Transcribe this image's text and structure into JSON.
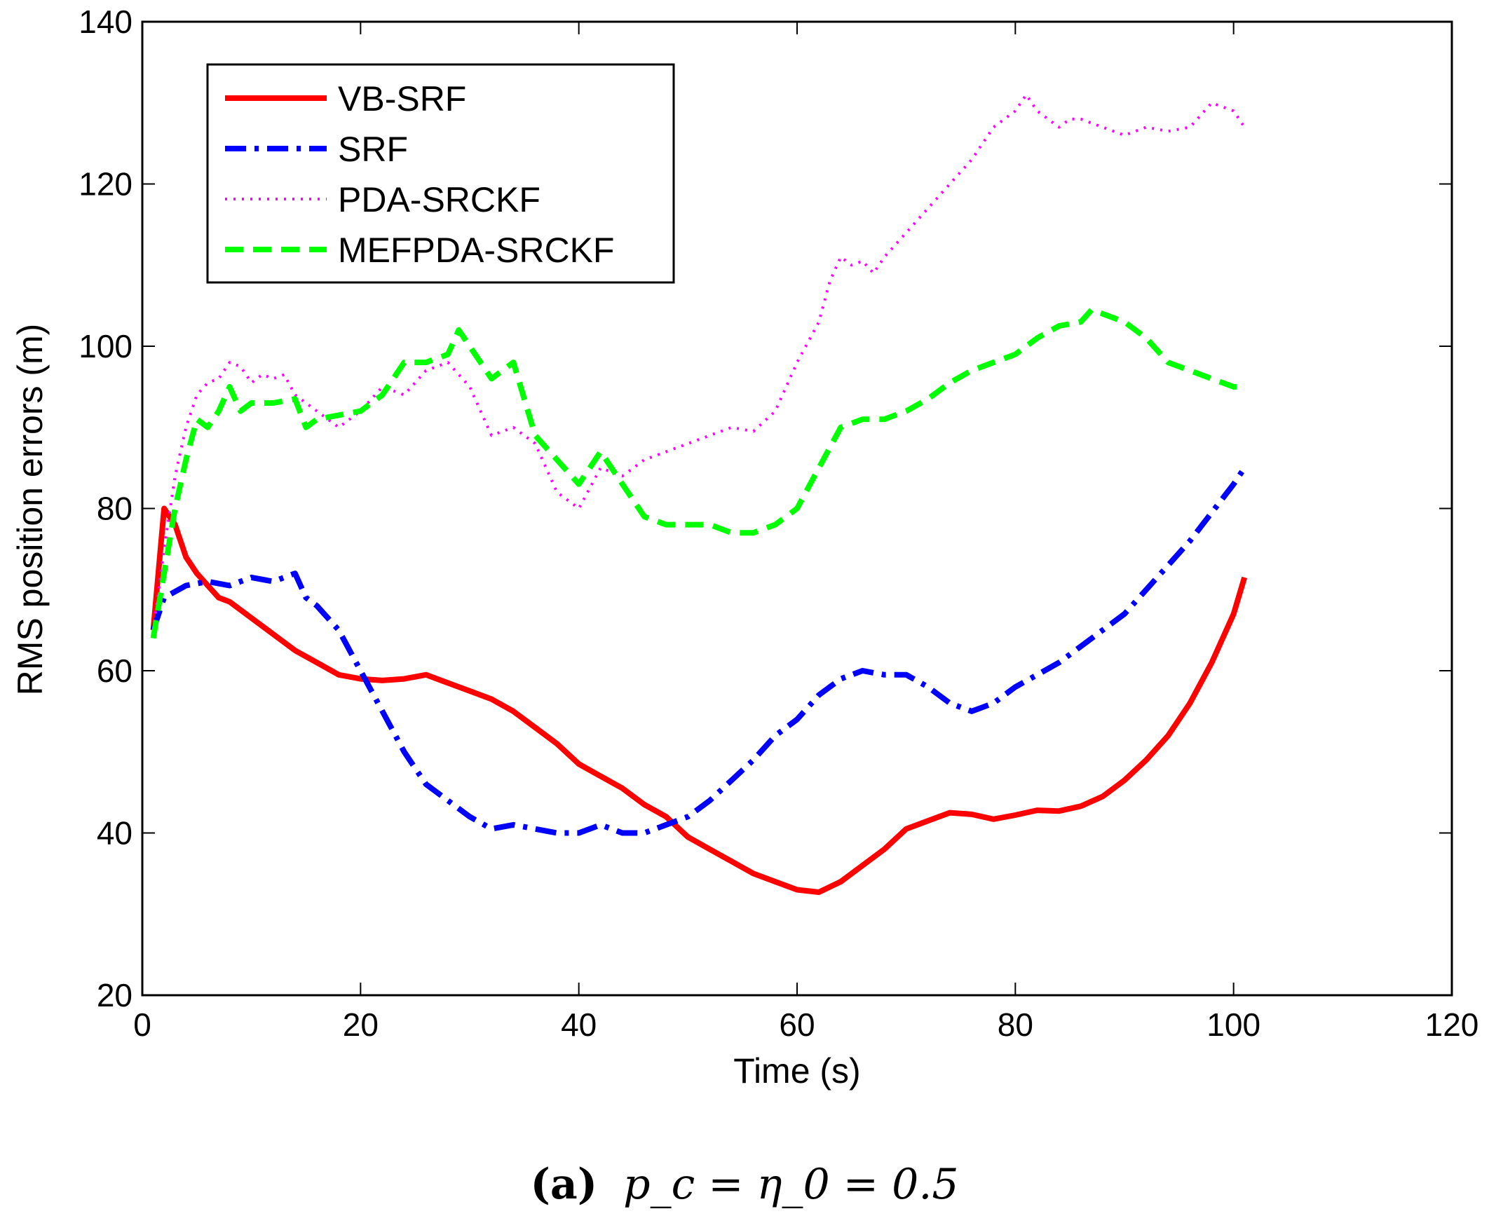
{
  "chart_data": {
    "type": "line",
    "title": "",
    "xlabel": "Time (s)",
    "ylabel": "RMS position errors (m)",
    "xlim": [
      0,
      120
    ],
    "ylim": [
      20,
      140
    ],
    "xticks": [
      0,
      20,
      40,
      60,
      80,
      100,
      120
    ],
    "yticks": [
      20,
      40,
      60,
      80,
      100,
      120,
      140
    ],
    "grid": false,
    "legend_position": "top-left",
    "series": [
      {
        "name": "VB-SRF",
        "color": "#ff0000",
        "style": "solid",
        "x": [
          1,
          2,
          3,
          4,
          5,
          6,
          7,
          8,
          9,
          10,
          12,
          14,
          16,
          18,
          20,
          22,
          24,
          26,
          28,
          30,
          32,
          34,
          36,
          38,
          40,
          42,
          44,
          46,
          48,
          50,
          52,
          54,
          56,
          58,
          60,
          62,
          64,
          66,
          68,
          70,
          72,
          74,
          76,
          78,
          80,
          82,
          84,
          86,
          88,
          90,
          92,
          94,
          96,
          98,
          100,
          101
        ],
        "y": [
          65,
          80,
          78,
          74,
          72,
          70.5,
          69,
          68.5,
          67.5,
          66.5,
          64.5,
          62.5,
          61,
          59.5,
          59,
          58.8,
          59,
          59.5,
          58.5,
          57.5,
          56.5,
          55,
          53,
          51,
          48.5,
          47,
          45.5,
          43.5,
          42,
          39.5,
          38,
          36.5,
          35,
          34,
          33,
          32.7,
          34,
          36,
          38,
          40.5,
          41.5,
          42.5,
          42.3,
          41.7,
          42.2,
          42.8,
          42.7,
          43.3,
          44.5,
          46.5,
          49,
          52,
          56,
          61,
          67,
          71.5
        ]
      },
      {
        "name": "SRF",
        "color": "#0000ff",
        "style": "dashdot",
        "x": [
          1,
          2,
          4,
          6,
          8,
          10,
          12,
          14,
          15,
          16,
          18,
          20,
          22,
          24,
          26,
          28,
          30,
          32,
          34,
          36,
          38,
          40,
          42,
          44,
          46,
          48,
          50,
          52,
          54,
          56,
          58,
          60,
          62,
          64,
          66,
          68,
          70,
          72,
          74,
          76,
          78,
          80,
          82,
          84,
          86,
          88,
          90,
          92,
          94,
          96,
          98,
          100,
          101
        ],
        "y": [
          65,
          69,
          70.5,
          71,
          70.5,
          71.5,
          71,
          72,
          69,
          68,
          65,
          60,
          55,
          50,
          46,
          44,
          42,
          40.5,
          41,
          40.5,
          40,
          40,
          41,
          40,
          40,
          41,
          42,
          44,
          46.5,
          49,
          52,
          54,
          57,
          59,
          60,
          59.5,
          59.5,
          58,
          56,
          55,
          56,
          58,
          59.5,
          61,
          63,
          65,
          67,
          70,
          73,
          76,
          79.5,
          83,
          85
        ]
      },
      {
        "name": "PDA-SRCKF",
        "color": "#ff00ff",
        "style": "dotted",
        "x": [
          1,
          2,
          3,
          4,
          5,
          6,
          7,
          8,
          9,
          10,
          11,
          12,
          13,
          14,
          16,
          18,
          20,
          22,
          24,
          26,
          28,
          30,
          32,
          34,
          36,
          38,
          40,
          42,
          44,
          46,
          48,
          50,
          52,
          54,
          56,
          58,
          60,
          62,
          63,
          64,
          65,
          66,
          67,
          68,
          70,
          72,
          74,
          76,
          78,
          80,
          81,
          82,
          83,
          84,
          85,
          86,
          88,
          90,
          92,
          94,
          96,
          98,
          100,
          101
        ],
        "y": [
          65,
          75,
          84,
          90,
          94,
          95.5,
          96,
          98,
          97.5,
          95.5,
          96.5,
          96,
          96.5,
          94,
          92,
          90,
          92,
          95,
          94,
          97,
          98,
          95,
          89,
          90,
          88,
          82,
          80,
          85,
          84,
          86,
          87,
          88,
          89,
          90,
          89.5,
          92,
          98,
          103,
          108,
          111,
          110,
          110.5,
          109,
          111,
          114,
          117,
          120,
          123,
          127,
          129,
          131,
          129,
          128,
          127,
          128,
          128,
          127,
          126,
          127,
          126.5,
          127,
          130,
          129,
          127
        ]
      },
      {
        "name": "MEFPDA-SRCKF",
        "color": "#00ff00",
        "style": "dashed",
        "x": [
          1,
          2,
          3,
          4,
          5,
          6,
          7,
          8,
          9,
          10,
          12,
          14,
          15,
          16,
          18,
          20,
          22,
          24,
          26,
          28,
          29,
          30,
          32,
          34,
          36,
          38,
          40,
          42,
          44,
          46,
          48,
          50,
          52,
          54,
          56,
          58,
          60,
          62,
          64,
          66,
          68,
          70,
          72,
          74,
          76,
          78,
          80,
          82,
          84,
          86,
          87,
          88,
          90,
          92,
          94,
          96,
          98,
          100,
          101
        ],
        "y": [
          64,
          72,
          80,
          86,
          91,
          90,
          92,
          95,
          92,
          93,
          93,
          93.5,
          90,
          91,
          91.5,
          92,
          94,
          98,
          98,
          99,
          102,
          100,
          96,
          98,
          89,
          86,
          83,
          87,
          83,
          79,
          78,
          78,
          78,
          77,
          77,
          78,
          80,
          85,
          90,
          91,
          91,
          92,
          93.5,
          95.5,
          97,
          98,
          99,
          101,
          102.5,
          103,
          104.5,
          104,
          103,
          101,
          98,
          97,
          96,
          95,
          95
        ]
      }
    ],
    "caption": {
      "label": "(a)",
      "equation": "p_c = η_0 = 0.5"
    }
  }
}
